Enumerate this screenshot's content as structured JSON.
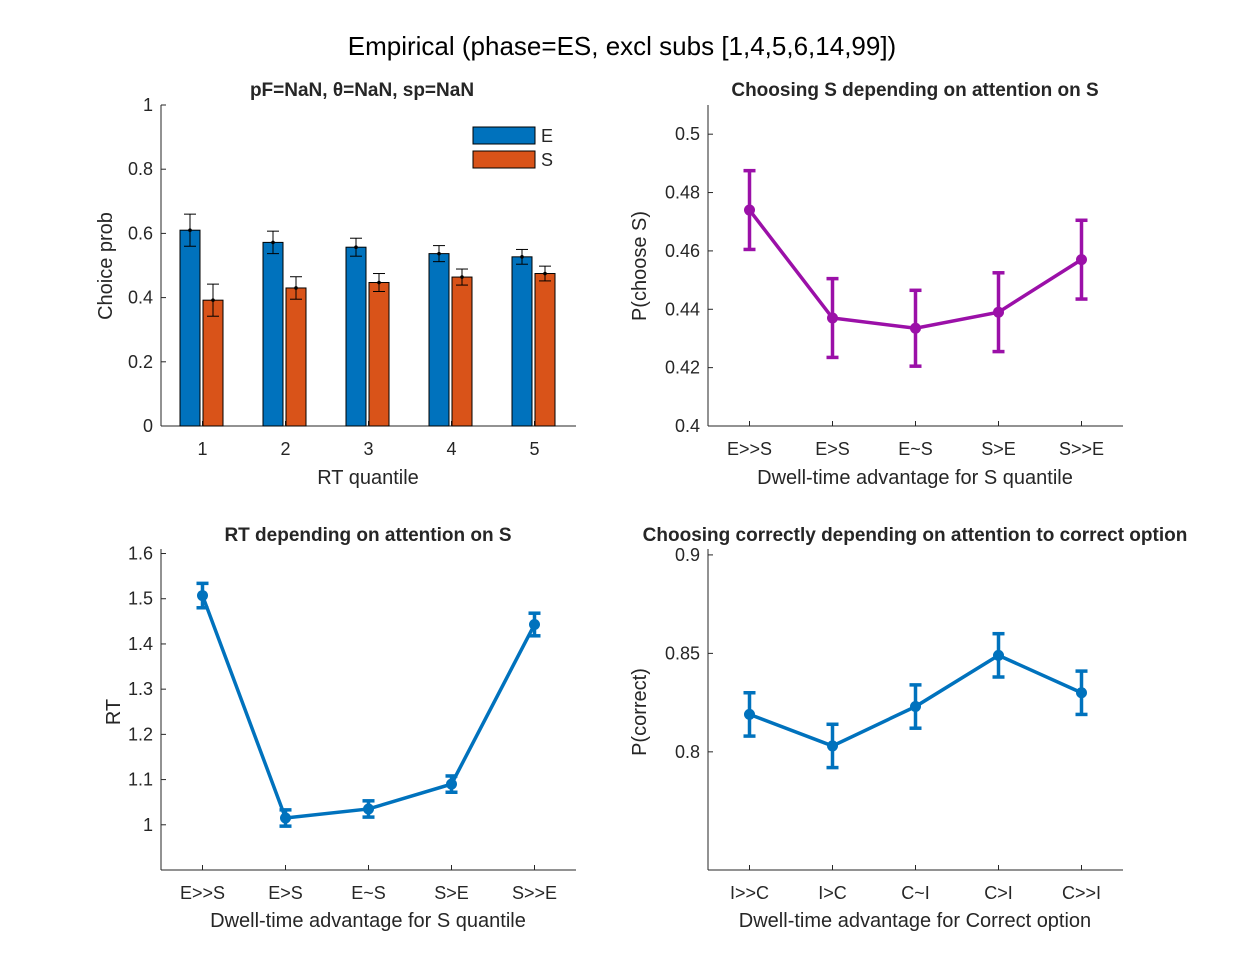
{
  "figure": {
    "suptitle": "Empirical (phase=ES, excl subs [1,4,5,6,14,99])",
    "colors": {
      "E": "#0072BD",
      "S": "#D95319",
      "purple": "#9B10A8",
      "blue": "#0072BD",
      "axis": "#262626"
    }
  },
  "chart_data": [
    {
      "id": "p1",
      "type": "bar",
      "title": "pF=NaN, θ=NaN, sp=NaN",
      "xlabel": "RT quantile",
      "ylabel": "Choice prob",
      "categories": [
        "1",
        "2",
        "3",
        "4",
        "5"
      ],
      "ylim": [
        0,
        1
      ],
      "yticks": [
        "0",
        "0.2",
        "0.4",
        "0.6",
        "0.8",
        "1"
      ],
      "yticks_values": [
        0,
        0.2,
        0.4,
        0.6,
        0.8,
        1
      ],
      "legend": "top-right",
      "series": [
        {
          "name": "E",
          "values": [
            0.61,
            0.572,
            0.557,
            0.537,
            0.527
          ],
          "errors": [
            0.05,
            0.035,
            0.028,
            0.025,
            0.023
          ]
        },
        {
          "name": "S",
          "values": [
            0.392,
            0.43,
            0.447,
            0.464,
            0.475
          ],
          "errors": [
            0.05,
            0.035,
            0.028,
            0.025,
            0.023
          ]
        }
      ]
    },
    {
      "id": "p2",
      "type": "line",
      "title": "Choosing S depending on attention on S",
      "xlabel": "Dwell-time advantage for S quantile",
      "ylabel": "P(choose S)",
      "categories": [
        "E>>S",
        "E>S",
        "E~S",
        "S>E",
        "S>>E"
      ],
      "ylim": [
        0.4,
        0.51
      ],
      "yticks": [
        "0.4",
        "0.42",
        "0.44",
        "0.46",
        "0.48",
        "0.5"
      ],
      "yticks_values": [
        0.4,
        0.42,
        0.44,
        0.46,
        0.48,
        0.5
      ],
      "values": [
        0.474,
        0.437,
        0.4335,
        0.439,
        0.457
      ],
      "errors": [
        0.0135,
        0.0135,
        0.013,
        0.0135,
        0.0135
      ]
    },
    {
      "id": "p3",
      "type": "line",
      "title": "RT depending on attention on S",
      "xlabel": "Dwell-time advantage for S quantile",
      "ylabel": "RT",
      "categories": [
        "E>>S",
        "E>S",
        "E~S",
        "S>E",
        "S>>E"
      ],
      "ylim": [
        0.9,
        1.61
      ],
      "yticks": [
        "1",
        "1.1",
        "1.2",
        "1.3",
        "1.4",
        "1.5",
        "1.6"
      ],
      "yticks_values": [
        1,
        1.1,
        1.2,
        1.3,
        1.4,
        1.5,
        1.6
      ],
      "values": [
        1.507,
        1.015,
        1.035,
        1.09,
        1.443
      ],
      "errors": [
        0.027,
        0.018,
        0.018,
        0.018,
        0.025
      ]
    },
    {
      "id": "p4",
      "type": "line",
      "title": "Choosing correctly depending on attention to correct option",
      "xlabel": "Dwell-time advantage for Correct option",
      "ylabel": "P(correct)",
      "categories": [
        "I>>C",
        "I>C",
        "C~I",
        "C>I",
        "C>>I"
      ],
      "ylim": [
        0.74,
        0.903
      ],
      "yticks": [
        "0.8",
        "0.85",
        "0.9"
      ],
      "yticks_values": [
        0.8,
        0.85,
        0.9
      ],
      "values": [
        0.819,
        0.803,
        0.823,
        0.849,
        0.83
      ],
      "errors": [
        0.011,
        0.011,
        0.011,
        0.011,
        0.011
      ]
    }
  ]
}
